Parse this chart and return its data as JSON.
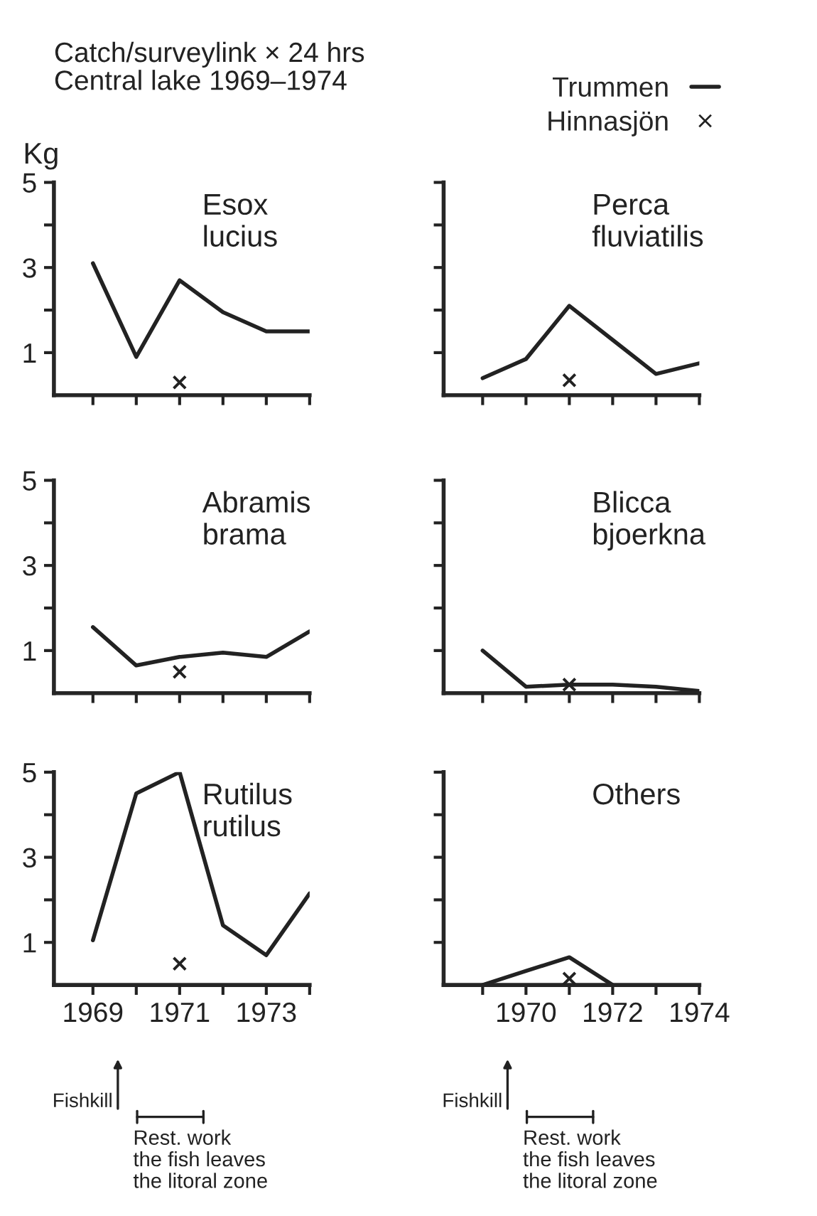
{
  "chart_data": [
    {
      "type": "line",
      "title": "Catch/surveylink × 24 hrs",
      "subtitle": "Central lake 1969–1974",
      "ylabel": "Kg",
      "annotations": [
        "Esox\nlucius"
      ],
      "x": [
        1969,
        1970,
        1971,
        1972,
        1973,
        1974
      ],
      "xlim": [
        1968.1,
        1974
      ],
      "xticks": [
        {
          "value": 1969,
          "label": null
        },
        {
          "value": 1970,
          "label": null
        },
        {
          "value": 1971,
          "label": null
        },
        {
          "value": 1972,
          "label": null
        },
        {
          "value": 1973,
          "label": null
        },
        {
          "value": 1974,
          "label": null
        }
      ],
      "ylim": [
        0,
        5
      ],
      "yticks": [
        1,
        {
          "value": 2,
          "label": null
        },
        3,
        {
          "value": 4,
          "label": null
        },
        5
      ],
      "tick_labels": "y",
      "series": [
        {
          "type": "line",
          "color": "#222222",
          "values": [
            3.1,
            0.9,
            2.7,
            1.95,
            1.5,
            1.5
          ]
        },
        {
          "type": "scatter",
          "marker": "cross",
          "color": "#222222",
          "x": [
            1971
          ],
          "values": [
            0.3
          ]
        }
      ]
    },
    {
      "type": "line",
      "annotations": [
        "Perca\nfluviatilis"
      ],
      "legend": "top right",
      "x": [
        1969,
        1970,
        1971,
        1972,
        1973,
        1974
      ],
      "xlim": [
        1968.1,
        1974
      ],
      "xticks": [
        {
          "value": 1969,
          "label": null
        },
        {
          "value": 1970,
          "label": null
        },
        {
          "value": 1971,
          "label": null
        },
        {
          "value": 1972,
          "label": null
        },
        {
          "value": 1973,
          "label": null
        },
        {
          "value": 1974,
          "label": null
        }
      ],
      "ylim": [
        0,
        5
      ],
      "yticks": [
        {
          "value": 1,
          "label": null
        },
        {
          "value": 2,
          "label": null
        },
        {
          "value": 3,
          "label": null
        },
        {
          "value": 4,
          "label": null
        },
        {
          "value": 5,
          "label": null
        }
      ],
      "tick_labels": false,
      "series": [
        {
          "type": "line",
          "name": "Trummen",
          "color": "#222222",
          "values": [
            0.4,
            0.85,
            2.1,
            1.3,
            0.5,
            0.75
          ]
        },
        {
          "type": "scatter",
          "name": "Hinnasjön",
          "marker": "cross",
          "color": "#222222",
          "x": [
            1971
          ],
          "values": [
            0.35
          ]
        }
      ]
    },
    {
      "type": "line",
      "annotations": [
        "Abramis\nbrama"
      ],
      "x": [
        1969,
        1970,
        1971,
        1972,
        1973,
        1974
      ],
      "xlim": [
        1968.1,
        1974
      ],
      "xticks": [
        {
          "value": 1969,
          "label": null
        },
        {
          "value": 1970,
          "label": null
        },
        {
          "value": 1971,
          "label": null
        },
        {
          "value": 1972,
          "label": null
        },
        {
          "value": 1973,
          "label": null
        },
        {
          "value": 1974,
          "label": null
        }
      ],
      "ylim": [
        0,
        5
      ],
      "yticks": [
        1,
        {
          "value": 2,
          "label": null
        },
        3,
        {
          "value": 4,
          "label": null
        },
        5
      ],
      "tick_labels": "y",
      "series": [
        {
          "type": "line",
          "color": "#222222",
          "values": [
            1.55,
            0.65,
            0.85,
            0.95,
            0.85,
            1.45
          ]
        },
        {
          "type": "scatter",
          "marker": "cross",
          "color": "#222222",
          "x": [
            1971
          ],
          "values": [
            0.5
          ]
        }
      ]
    },
    {
      "type": "line",
      "annotations": [
        "Blicca\nbjoerkna"
      ],
      "x": [
        1969,
        1970,
        1971,
        1972,
        1973,
        1974
      ],
      "xlim": [
        1968.1,
        1974
      ],
      "xticks": [
        {
          "value": 1969,
          "label": null
        },
        {
          "value": 1970,
          "label": null
        },
        {
          "value": 1971,
          "label": null
        },
        {
          "value": 1972,
          "label": null
        },
        {
          "value": 1973,
          "label": null
        },
        {
          "value": 1974,
          "label": null
        }
      ],
      "ylim": [
        0,
        5
      ],
      "yticks": [
        {
          "value": 1,
          "label": null
        },
        {
          "value": 2,
          "label": null
        },
        {
          "value": 3,
          "label": null
        },
        {
          "value": 4,
          "label": null
        },
        {
          "value": 5,
          "label": null
        }
      ],
      "tick_labels": false,
      "series": [
        {
          "type": "line",
          "color": "#222222",
          "values": [
            1.0,
            0.15,
            0.2,
            0.2,
            0.15,
            0.05
          ]
        },
        {
          "type": "scatter",
          "marker": "cross",
          "color": "#222222",
          "x": [
            1971
          ],
          "values": [
            0.2
          ]
        }
      ]
    },
    {
      "type": "line",
      "annotations": [
        "Rutilus\nrutilus",
        "Fishkill",
        "Rest. work\nthe fish leaves\nthe litoral zone"
      ],
      "x": [
        1969,
        1970,
        1971,
        1972,
        1973,
        1974
      ],
      "xlim": [
        1968.1,
        1974
      ],
      "xticks": [
        1969,
        {
          "value": 1970,
          "label": null
        },
        1971,
        {
          "value": 1972,
          "label": null
        },
        1973,
        {
          "value": 1974,
          "label": null
        }
      ],
      "ylim": [
        0,
        5
      ],
      "yticks": [
        1,
        {
          "value": 2,
          "label": null
        },
        3,
        {
          "value": 4,
          "label": null
        },
        5
      ],
      "series": [
        {
          "type": "line",
          "color": "#222222",
          "values": [
            1.05,
            4.5,
            5.0,
            1.4,
            0.7,
            2.15
          ]
        },
        {
          "type": "scatter",
          "marker": "cross",
          "color": "#222222",
          "x": [
            1971
          ],
          "values": [
            0.5
          ]
        }
      ]
    },
    {
      "type": "line",
      "annotations": [
        "Others",
        "Fishkill",
        "Rest. work\nthe fish leaves\nthe litoral zone"
      ],
      "xlim": [
        1968.1,
        1974
      ],
      "xticks": [
        {
          "value": 1969,
          "label": null
        },
        1970,
        {
          "value": 1971,
          "label": null
        },
        1972,
        {
          "value": 1973,
          "label": null
        },
        1974
      ],
      "ylim": [
        0,
        5
      ],
      "yticks": [
        {
          "value": 1,
          "label": null
        },
        {
          "value": 2,
          "label": null
        },
        {
          "value": 3,
          "label": null
        },
        {
          "value": 4,
          "label": null
        },
        {
          "value": 5,
          "label": null
        }
      ],
      "tick_labels": "x",
      "series": [
        {
          "type": "line",
          "color": "#222222",
          "x": [
            1969,
            1970,
            1971,
            1972
          ],
          "values": [
            0,
            0.33,
            0.65,
            0
          ]
        },
        {
          "type": "scatter",
          "marker": "cross",
          "color": "#222222",
          "x": [
            1971
          ],
          "values": [
            0.15
          ]
        }
      ]
    }
  ]
}
